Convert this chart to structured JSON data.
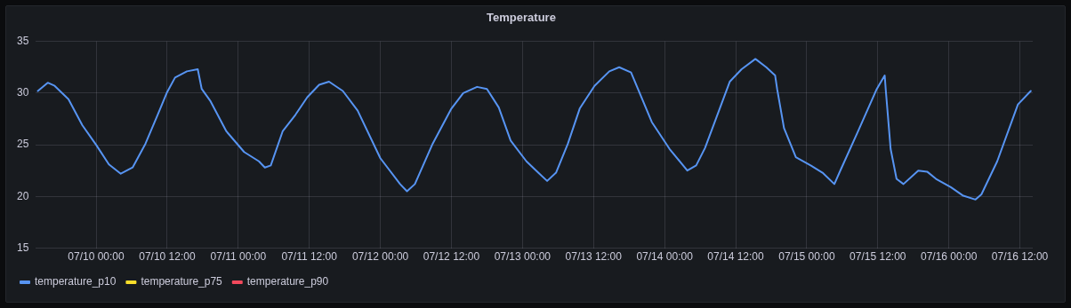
{
  "chart_data": {
    "type": "line",
    "title": "Temperature",
    "x": [
      "--07-09T14:10",
      "--07-09T15:50",
      "--07-09T17:00",
      "--07-09T19:20",
      "--07-09T21:40",
      "--07-10T00:00",
      "--07-10T02:10",
      "--07-10T04:10",
      "--07-10T06:10",
      "--07-10T08:20",
      "--07-10T10:20",
      "--07-10T12:00",
      "--07-10T13:20",
      "--07-10T15:20",
      "--07-10T17:10",
      "--07-10T17:50",
      "--07-10T19:20",
      "--07-10T22:00",
      "--07-11T01:00",
      "--07-11T03:30",
      "--07-11T04:30",
      "--07-11T05:30",
      "--07-11T07:30",
      "--07-11T09:40",
      "--07-11T11:40",
      "--07-11T13:40",
      "--07-11T15:20",
      "--07-11T17:40",
      "--07-11T20:10",
      "--07-12T00:00",
      "--07-12T03:20",
      "--07-12T04:30",
      "--07-12T05:50",
      "--07-12T08:50",
      "--07-12T12:00",
      "--07-12T14:00",
      "--07-12T16:20",
      "--07-12T18:00",
      "--07-12T20:00",
      "--07-12T22:00",
      "--07-13T00:40",
      "--07-13T02:40",
      "--07-13T04:10",
      "--07-13T05:40",
      "--07-13T07:40",
      "--07-13T09:40",
      "--07-13T12:10",
      "--07-13T14:40",
      "--07-13T16:20",
      "--07-13T18:20",
      "--07-13T21:50",
      "--07-14T00:50",
      "--07-14T03:50",
      "--07-14T05:20",
      "--07-14T06:50",
      "--07-14T11:00",
      "--07-14T13:00",
      "--07-14T15:20",
      "--07-14T17:10",
      "--07-14T18:40",
      "--07-14T19:00",
      "--07-14T20:10",
      "--07-14T22:10",
      "--07-15T00:40",
      "--07-15T02:40",
      "--07-15T04:40",
      "--07-15T05:40",
      "--07-15T08:40",
      "--07-15T11:50",
      "--07-15T13:10",
      "--07-15T13:20",
      "--07-15T14:10",
      "--07-15T15:10",
      "--07-15T16:20",
      "--07-15T18:50",
      "--07-15T20:20",
      "--07-15T21:50",
      "--07-16T00:20",
      "--07-16T02:20",
      "--07-16T04:30",
      "--07-16T05:30",
      "--07-16T08:10",
      "--07-16T11:40",
      "--07-16T13:50"
    ],
    "series": [
      {
        "name": "temperature_p10",
        "color": "#5794f2",
        "values": [
          30.2,
          31.0,
          30.7,
          29.4,
          26.9,
          25.0,
          23.1,
          22.2,
          22.8,
          25.1,
          27.8,
          30.1,
          31.5,
          32.1,
          32.3,
          30.4,
          29.2,
          26.3,
          24.3,
          23.4,
          22.8,
          23.0,
          26.3,
          27.9,
          29.6,
          30.8,
          31.1,
          30.2,
          28.3,
          23.7,
          21.2,
          20.5,
          21.2,
          25.1,
          28.5,
          30.0,
          30.6,
          30.4,
          28.6,
          25.4,
          23.4,
          22.3,
          21.5,
          22.3,
          25.1,
          28.5,
          30.7,
          32.1,
          32.5,
          32.0,
          27.2,
          24.6,
          22.5,
          23.0,
          24.7,
          31.1,
          32.3,
          33.3,
          32.5,
          31.7,
          30.4,
          26.6,
          23.8,
          23.0,
          22.3,
          21.2,
          22.5,
          26.3,
          30.4,
          31.7,
          30.4,
          24.6,
          21.7,
          21.2,
          22.5,
          22.4,
          21.7,
          20.9,
          20.1,
          19.7,
          20.2,
          23.4,
          28.9,
          30.2
        ]
      },
      {
        "name": "temperature_p75",
        "color": "#fade2a",
        "values": [
          null,
          null,
          null,
          null,
          null,
          null,
          null,
          null,
          null,
          null,
          null,
          null,
          null,
          null,
          null,
          null,
          null,
          null,
          null,
          null,
          null,
          null,
          null,
          null,
          null,
          null,
          null,
          null,
          null,
          null,
          null,
          null,
          null,
          null,
          null,
          null,
          null,
          null,
          null,
          null,
          null,
          null,
          null,
          null,
          null,
          null,
          null,
          null,
          null,
          null,
          null,
          null,
          null,
          null,
          null,
          null,
          null,
          null,
          null,
          null,
          null,
          null,
          null,
          null,
          null,
          null,
          null,
          null,
          null,
          null,
          null,
          null,
          null,
          null,
          null,
          null,
          null,
          null,
          null,
          null,
          null,
          null,
          null,
          null
        ]
      },
      {
        "name": "temperature_p90",
        "color": "#f2495c",
        "values": [
          null,
          null,
          null,
          null,
          null,
          null,
          null,
          null,
          null,
          null,
          null,
          null,
          null,
          null,
          null,
          null,
          null,
          null,
          null,
          null,
          null,
          null,
          null,
          null,
          null,
          null,
          null,
          null,
          null,
          null,
          null,
          null,
          null,
          null,
          null,
          null,
          null,
          null,
          null,
          null,
          null,
          null,
          null,
          null,
          null,
          null,
          null,
          null,
          null,
          null,
          null,
          null,
          null,
          null,
          null,
          null,
          null,
          null,
          null,
          null,
          null,
          null,
          null,
          null,
          null,
          null,
          null,
          null,
          null,
          null,
          null,
          null,
          null,
          null,
          null,
          null,
          null,
          null,
          null,
          null,
          null,
          null,
          null,
          null
        ]
      }
    ],
    "xlim": [
      "--07-09T13:50",
      "--07-16T14:10"
    ],
    "xticks": [
      {
        "value": "--07-10T00:00",
        "label": "07/10 00:00"
      },
      {
        "value": "--07-10T12:00",
        "label": "07/10 12:00"
      },
      {
        "value": "--07-11T00:00",
        "label": "07/11 00:00"
      },
      {
        "value": "--07-11T12:00",
        "label": "07/11 12:00"
      },
      {
        "value": "--07-12T00:00",
        "label": "07/12 00:00"
      },
      {
        "value": "--07-12T12:00",
        "label": "07/12 12:00"
      },
      {
        "value": "--07-13T00:00",
        "label": "07/13 00:00"
      },
      {
        "value": "--07-13T12:00",
        "label": "07/13 12:00"
      },
      {
        "value": "--07-14T00:00",
        "label": "07/14 00:00"
      },
      {
        "value": "--07-14T12:00",
        "label": "07/14 12:00"
      },
      {
        "value": "--07-15T00:00",
        "label": "07/15 00:00"
      },
      {
        "value": "--07-15T12:00",
        "label": "07/15 12:00"
      },
      {
        "value": "--07-16T00:00",
        "label": "07/16 00:00"
      },
      {
        "value": "--07-16T12:00",
        "label": "07/16 12:00"
      }
    ],
    "ylim": [
      15,
      35
    ],
    "yticks": [
      15,
      20,
      25,
      30,
      35
    ],
    "grid": true,
    "legend": "bottom left",
    "marker": "none",
    "line_style": "solid"
  }
}
